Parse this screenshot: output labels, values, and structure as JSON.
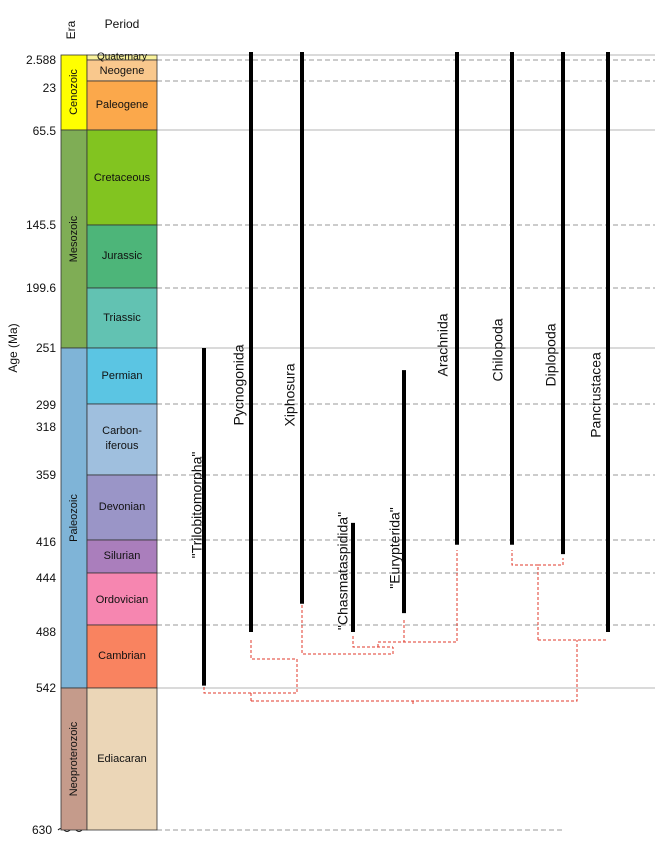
{
  "headers": {
    "era": "Era",
    "period": "Period",
    "axis_label": "Age (Ma)"
  },
  "ages": [
    "2.588",
    "23",
    "65.5",
    "145.5",
    "199.6",
    "251",
    "299",
    "318",
    "359",
    "416",
    "444",
    "488",
    "542",
    "630"
  ],
  "eras": [
    {
      "name": "Cenozoic",
      "color": "#ffff00"
    },
    {
      "name": "Mesozoic",
      "color": "#7fad55"
    },
    {
      "name": "Paleozoic",
      "color": "#7fb4d7"
    },
    {
      "name": "Neoproterozoic",
      "color": "#c59b8b"
    }
  ],
  "periods": [
    {
      "name": "Quaternary",
      "color": "#f9f29b"
    },
    {
      "name": "Neogene",
      "color": "#f9c88d"
    },
    {
      "name": "Paleogene",
      "color": "#fba84b"
    },
    {
      "name": "Cretaceous",
      "color": "#82c420"
    },
    {
      "name": "Jurassic",
      "color": "#4db579"
    },
    {
      "name": "Triassic",
      "color": "#62c2b2"
    },
    {
      "name": "Permian",
      "color": "#5bc5e3"
    },
    {
      "name": "Carbon-",
      "color": "#9fbfde",
      "name2": "iferous"
    },
    {
      "name": "Devonian",
      "color": "#9a95c7"
    },
    {
      "name": "Silurian",
      "color": "#aa7ebc"
    },
    {
      "name": "Ordovician",
      "color": "#f686b0"
    },
    {
      "name": "Cambrian",
      "color": "#f98360"
    },
    {
      "name": "Ediacaran",
      "color": "#ebd6b7"
    }
  ],
  "taxa": [
    {
      "name": "\"Trilobitomorpha\"",
      "first": 540,
      "last": 251
    },
    {
      "name": "Pycnogonida",
      "first": 494,
      "last": 0
    },
    {
      "name": "Xiphosura",
      "first": 470,
      "last": 0
    },
    {
      "name": "\"Chasmataspidida\"",
      "first": 494,
      "last": 401
    },
    {
      "name": "\"Eurypterida\"",
      "first": 478,
      "last": 270
    },
    {
      "name": "Arachnida",
      "first": 420,
      "last": 0
    },
    {
      "name": "Chilopoda",
      "first": 420,
      "last": 0
    },
    {
      "name": "Diplopoda",
      "first": 428,
      "last": 0
    },
    {
      "name": "Pancrustacea",
      "first": 494,
      "last": 0
    }
  ],
  "colors": {
    "range_bar": "#000000",
    "tree": "#e0392b",
    "gridline": "#b5b5b5",
    "gridline_dashed": "#9a9a9a"
  }
}
